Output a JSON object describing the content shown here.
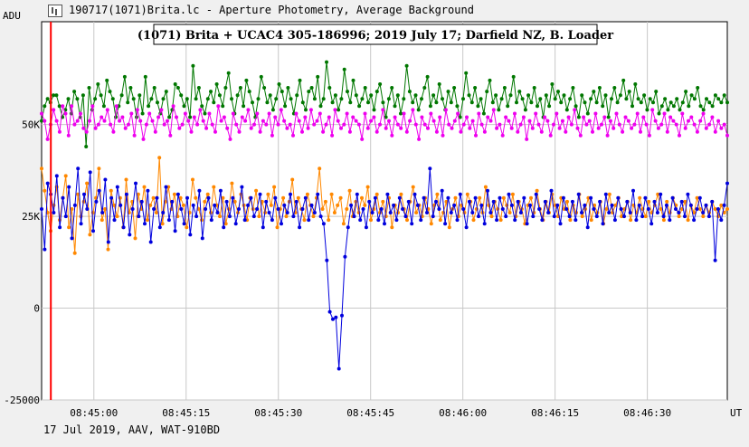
{
  "window": {
    "title": "190717(1071)Brita.lc - Aperture Photometry, Average Background",
    "footer": "17 Jul 2019, AAV, WAT-910BD"
  },
  "colors": {
    "green_series": "#007700",
    "magenta_series": "#ee00ee",
    "orange_series": "#ff8800",
    "blue_series": "#0000dd",
    "marker_line": "#ff0000",
    "grid": "#c8c8c8",
    "plot_background": "#ffffff"
  },
  "chart_data": {
    "type": "line",
    "title": "(1071) Brita + UCAC4 305-186996;  2019 July 17;  Darfield NZ, B. Loader",
    "ylabel": "ADU",
    "xlabel": "UT",
    "ylim": [
      -25000,
      78000
    ],
    "xlim": [
      "08:44:51.5",
      "08:46:43.0"
    ],
    "yticks": [
      {
        "value": 50000,
        "label": "50K"
      },
      {
        "value": 25000,
        "label": "25K"
      },
      {
        "value": 0,
        "label": "0"
      },
      {
        "value": -25000,
        "label": "-25000"
      }
    ],
    "xticks": [
      "08:45:00",
      "08:45:15",
      "08:45:30",
      "08:45:45",
      "08:46:00",
      "08:46:15",
      "08:46:30"
    ],
    "grid": true,
    "marker_time": "08:44:53.0",
    "x_start": "08:44:51.5",
    "x_end": "08:46:43.0",
    "series": [
      {
        "color": "green",
        "values": [
          51000,
          55000,
          57000,
          56000,
          58000,
          58000,
          55000,
          52000,
          54000,
          57000,
          53000,
          59000,
          57000,
          52000,
          58000,
          44000,
          60000,
          54000,
          57000,
          61000,
          58000,
          55000,
          62000,
          59000,
          57000,
          52000,
          55000,
          58000,
          63000,
          56000,
          60000,
          57000,
          52000,
          58000,
          53000,
          63000,
          55000,
          57000,
          60000,
          56000,
          53000,
          57000,
          59000,
          52000,
          54000,
          61000,
          60000,
          58000,
          55000,
          57000,
          52000,
          66000,
          57000,
          60000,
          55000,
          53000,
          57000,
          59000,
          56000,
          61000,
          58000,
          55000,
          60000,
          64000,
          57000,
          53000,
          58000,
          60000,
          55000,
          62000,
          59000,
          56000,
          52000,
          57000,
          63000,
          60000,
          56000,
          58000,
          54000,
          57000,
          61000,
          59000,
          55000,
          60000,
          57000,
          53000,
          58000,
          62000,
          56000,
          54000,
          59000,
          60000,
          57000,
          63000,
          55000,
          57000,
          67000,
          60000,
          56000,
          58000,
          54000,
          57000,
          65000,
          59000,
          56000,
          62000,
          58000,
          55000,
          57000,
          60000,
          56000,
          58000,
          54000,
          59000,
          61000,
          56000,
          52000,
          57000,
          60000,
          55000,
          58000,
          53000,
          57000,
          66000,
          59000,
          56000,
          58000,
          54000,
          57000,
          60000,
          63000,
          55000,
          58000,
          56000,
          61000,
          57000,
          54000,
          59000,
          56000,
          60000,
          55000,
          52000,
          57000,
          64000,
          58000,
          56000,
          60000,
          55000,
          57000,
          53000,
          59000,
          62000,
          56000,
          58000,
          54000,
          57000,
          60000,
          55000,
          58000,
          63000,
          56000,
          59000,
          57000,
          54000,
          58000,
          56000,
          60000,
          55000,
          57000,
          52000,
          58000,
          55000,
          61000,
          57000,
          59000,
          56000,
          58000,
          54000,
          57000,
          60000,
          55000,
          52000,
          58000,
          56000,
          53000,
          57000,
          59000,
          56000,
          60000,
          55000,
          58000,
          52000,
          57000,
          60000,
          56000,
          58000,
          62000,
          57000,
          59000,
          55000,
          61000,
          57000,
          56000,
          58000,
          54000,
          57000,
          56000,
          59000,
          53000,
          55000,
          57000,
          54000,
          56000,
          55000,
          57000,
          54000,
          56000,
          59000,
          55000,
          58000,
          57000,
          60000,
          55000,
          54000,
          57000,
          56000,
          55000,
          58000,
          57000,
          56000,
          58000,
          56000
        ]
      },
      {
        "color": "magenta",
        "values": [
          53000,
          51000,
          46000,
          50000,
          54000,
          51000,
          48000,
          55000,
          53000,
          47000,
          55000,
          50000,
          51000,
          53000,
          49000,
          48000,
          51000,
          55000,
          49000,
          50000,
          52000,
          51000,
          54000,
          50000,
          48000,
          55000,
          51000,
          52000,
          49000,
          50000,
          53000,
          47000,
          54000,
          51000,
          46000,
          50000,
          53000,
          51000,
          48000,
          52000,
          54000,
          50000,
          51000,
          47000,
          55000,
          52000,
          49000,
          50000,
          53000,
          51000,
          48000,
          52000,
          50000,
          54000,
          51000,
          49000,
          53000,
          50000,
          48000,
          55000,
          51000,
          52000,
          49000,
          46000,
          53000,
          50000,
          48000,
          52000,
          51000,
          54000,
          49000,
          50000,
          53000,
          48000,
          51000,
          50000,
          53000,
          47000,
          52000,
          50000,
          54000,
          51000,
          49000,
          50000,
          47000,
          53000,
          51000,
          48000,
          52000,
          49000,
          54000,
          50000,
          51000,
          53000,
          48000,
          50000,
          52000,
          47000,
          54000,
          51000,
          49000,
          50000,
          53000,
          48000,
          52000,
          51000,
          50000,
          46000,
          53000,
          49000,
          51000,
          52000,
          48000,
          50000,
          54000,
          49000,
          51000,
          47000,
          52000,
          50000,
          49000,
          53000,
          48000,
          51000,
          54000,
          50000,
          46000,
          52000,
          50000,
          49000,
          53000,
          51000,
          48000,
          52000,
          47000,
          54000,
          50000,
          49000,
          51000,
          53000,
          48000,
          50000,
          52000,
          49000,
          51000,
          47000,
          53000,
          50000,
          48000,
          52000,
          51000,
          54000,
          49000,
          50000,
          47000,
          52000,
          51000,
          49000,
          53000,
          48000,
          50000,
          52000,
          46000,
          51000,
          49000,
          53000,
          50000,
          48000,
          52000,
          51000,
          47000,
          50000,
          53000,
          49000,
          51000,
          48000,
          52000,
          50000,
          54000,
          49000,
          47000,
          52000,
          50000,
          51000,
          48000,
          53000,
          49000,
          50000,
          52000,
          47000,
          51000,
          49000,
          53000,
          50000,
          48000,
          52000,
          51000,
          49000,
          50000,
          53000,
          48000,
          52000,
          50000,
          47000,
          54000,
          51000,
          49000,
          50000,
          53000,
          48000,
          52000,
          51000,
          50000,
          47000,
          53000,
          49000,
          51000,
          52000,
          50000,
          48000,
          51000,
          53000,
          49000,
          50000,
          52000,
          48000,
          51000,
          49000,
          50000,
          47000
        ]
      },
      {
        "color": "orange",
        "values": [
          38000,
          32000,
          26000,
          21000,
          28000,
          33000,
          24000,
          30000,
          36000,
          22000,
          27000,
          15000,
          31000,
          25000,
          29000,
          34000,
          20000,
          26000,
          30000,
          38000,
          24000,
          27000,
          16000,
          32000,
          28000,
          25000,
          30000,
          22000,
          35000,
          26000,
          29000,
          19000,
          31000,
          27000,
          33000,
          24000,
          28000,
          30000,
          26000,
          41000,
          23000,
          29000,
          33000,
          27000,
          31000,
          25000,
          30000,
          28000,
          22000,
          26000,
          35000,
          30000,
          27000,
          24000,
          29000,
          31000,
          26000,
          33000,
          28000,
          25000,
          30000,
          23000,
          27000,
          34000,
          29000,
          26000,
          31000,
          28000,
          24000,
          30000,
          27000,
          32000,
          25000,
          29000,
          26000,
          31000,
          28000,
          33000,
          22000,
          27000,
          30000,
          25000,
          29000,
          35000,
          26000,
          30000,
          27000,
          24000,
          31000,
          28000,
          25000,
          30000,
          38000,
          27000,
          29000,
          24000,
          31000,
          26000,
          28000,
          30000,
          23000,
          27000,
          32000,
          25000,
          29000,
          26000,
          30000,
          28000,
          33000,
          24000,
          27000,
          31000,
          26000,
          29000,
          25000,
          30000,
          22000,
          28000,
          26000,
          31000,
          27000,
          24000,
          29000,
          33000,
          26000,
          28000,
          25000,
          30000,
          27000,
          23000,
          28000,
          31000,
          24000,
          26000,
          29000,
          22000,
          27000,
          30000,
          25000,
          28000,
          26000,
          31000,
          29000,
          24000,
          27000,
          30000,
          26000,
          33000,
          28000,
          25000,
          29000,
          27000,
          24000,
          30000,
          28000,
          26000,
          31000,
          25000,
          29000,
          27000,
          23000,
          28000,
          30000,
          26000,
          32000,
          27000,
          24000,
          29000,
          26000,
          31000,
          28000,
          25000,
          30000,
          27000,
          29000,
          24000,
          28000,
          26000,
          31000,
          25000,
          27000,
          30000,
          24000,
          28000,
          26000,
          29000,
          23000,
          27000,
          31000,
          26000,
          28000,
          30000,
          25000,
          27000,
          29000,
          24000,
          28000,
          26000,
          30000,
          27000,
          25000,
          29000,
          26000,
          28000,
          31000,
          27000,
          24000,
          29000,
          26000,
          30000,
          28000,
          25000,
          27000,
          29000,
          24000,
          28000,
          26000,
          30000,
          27000,
          25000,
          28000,
          26000,
          29000,
          27000,
          25000,
          28000,
          26000,
          27000
        ]
      },
      {
        "color": "blue",
        "values": [
          27000,
          16000,
          34000,
          31000,
          26000,
          36000,
          22000,
          30000,
          25000,
          33000,
          19000,
          28000,
          38000,
          23000,
          31000,
          27000,
          37000,
          21000,
          29000,
          32000,
          26000,
          35000,
          18000,
          30000,
          24000,
          33000,
          28000,
          22000,
          31000,
          20000,
          27000,
          34000,
          25000,
          29000,
          23000,
          32000,
          18000,
          27000,
          30000,
          22000,
          26000,
          33000,
          24000,
          29000,
          21000,
          31000,
          27000,
          23000,
          30000,
          20000,
          28000,
          25000,
          32000,
          19000,
          27000,
          30000,
          24000,
          28000,
          26000,
          32000,
          22000,
          29000,
          25000,
          30000,
          23000,
          27000,
          33000,
          24000,
          28000,
          30000,
          25000,
          27000,
          31000,
          22000,
          29000,
          26000,
          24000,
          30000,
          27000,
          23000,
          28000,
          26000,
          31000,
          25000,
          29000,
          22000,
          27000,
          30000,
          24000,
          28000,
          26000,
          31000,
          25000,
          23000,
          13000,
          -1000,
          -3000,
          -2500,
          -16500,
          -2000,
          14000,
          22000,
          28000,
          25000,
          31000,
          24000,
          27000,
          22000,
          29000,
          26000,
          30000,
          24000,
          27000,
          23000,
          31000,
          26000,
          28000,
          24000,
          30000,
          27000,
          25000,
          29000,
          23000,
          31000,
          28000,
          24000,
          30000,
          26000,
          38000,
          25000,
          29000,
          27000,
          32000,
          23000,
          30000,
          26000,
          28000,
          24000,
          31000,
          27000,
          22000,
          29000,
          26000,
          30000,
          25000,
          28000,
          23000,
          32000,
          26000,
          29000,
          24000,
          30000,
          27000,
          25000,
          31000,
          28000,
          24000,
          29000,
          26000,
          30000,
          23000,
          28000,
          25000,
          31000,
          27000,
          24000,
          29000,
          26000,
          32000,
          25000,
          28000,
          23000,
          30000,
          27000,
          25000,
          29000,
          24000,
          31000,
          26000,
          28000,
          22000,
          30000,
          27000,
          25000,
          29000,
          23000,
          31000,
          26000,
          28000,
          24000,
          30000,
          27000,
          25000,
          29000,
          26000,
          32000,
          24000,
          28000,
          25000,
          30000,
          27000,
          23000,
          29000,
          26000,
          31000,
          25000,
          28000,
          24000,
          30000,
          27000,
          26000,
          29000,
          25000,
          31000,
          28000,
          24000,
          27000,
          30000,
          26000,
          28000,
          25000,
          29000,
          13000,
          27000,
          24000,
          28000,
          34000
        ]
      }
    ]
  }
}
